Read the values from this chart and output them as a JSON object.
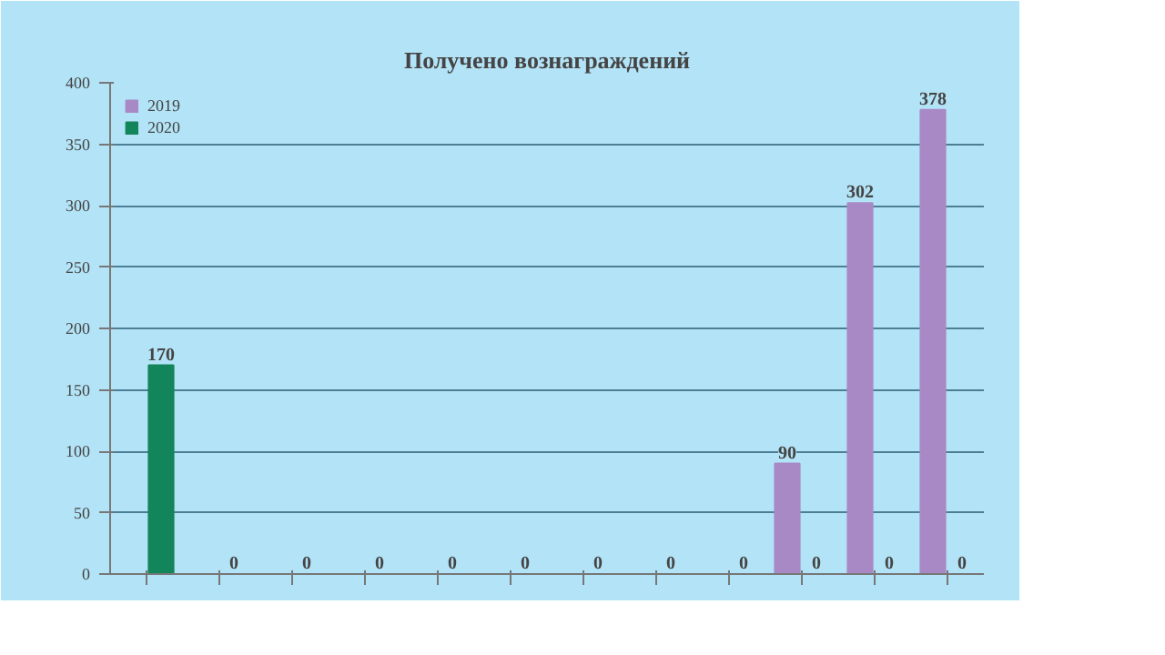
{
  "chart_data": {
    "type": "bar",
    "title": "Получено вознаграждений",
    "categories": [
      null,
      null,
      null,
      null,
      null,
      null,
      null,
      null,
      null,
      null,
      null,
      null
    ],
    "series": [
      {
        "name": "2019",
        "color": "#a989c5",
        "values": [
          null,
          null,
          null,
          null,
          null,
          null,
          null,
          null,
          null,
          90,
          302,
          378
        ]
      },
      {
        "name": "2020",
        "color": "#13855a",
        "values": [
          170,
          0,
          0,
          0,
          0,
          0,
          0,
          0,
          0,
          0,
          0,
          0
        ]
      }
    ],
    "ylim": [
      0,
      400
    ],
    "yticks": [
      0,
      50,
      100,
      150,
      200,
      250,
      300,
      350,
      400
    ],
    "grid": "y",
    "legend": "top left",
    "data_labels": true
  }
}
